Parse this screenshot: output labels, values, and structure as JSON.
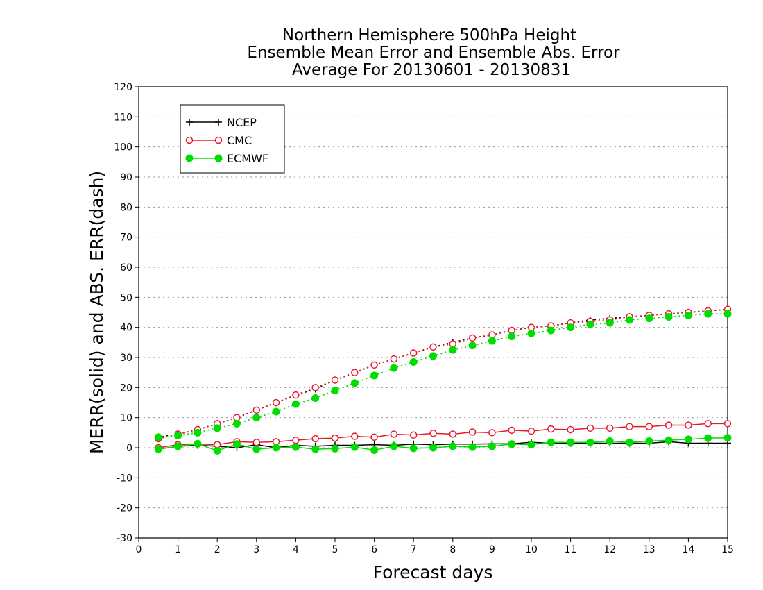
{
  "chart_data": {
    "type": "line",
    "title": [
      "Northern Hemisphere 500hPa Height",
      "Ensemble Mean Error and Ensemble Abs. Error",
      "Average For 20130601 - 20130831"
    ],
    "xlabel": "Forecast days",
    "ylabel": "MERR(solid) and ABS. ERR(dash)",
    "xlim": [
      0,
      15
    ],
    "ylim": [
      -30,
      120
    ],
    "xticks": [
      "0",
      "1",
      "2",
      "3",
      "4",
      "5",
      "6",
      "7",
      "8",
      "9",
      "10",
      "11",
      "12",
      "13",
      "14",
      "15"
    ],
    "yticks": [
      "-30",
      "-20",
      "-10",
      "0",
      "10",
      "20",
      "30",
      "40",
      "50",
      "60",
      "70",
      "80",
      "90",
      "100",
      "110",
      "120"
    ],
    "grid": "horizontal dotted",
    "legend_position": "top-left",
    "x": [
      0.5,
      1,
      1.5,
      2,
      2.5,
      3,
      3.5,
      4,
      4.5,
      5,
      5.5,
      6,
      6.5,
      7,
      7.5,
      8,
      8.5,
      9,
      9.5,
      10,
      10.5,
      11,
      11.5,
      12,
      12.5,
      13,
      13.5,
      14,
      14.5,
      15
    ],
    "series": [
      {
        "name": "NCEP",
        "color": "#000000",
        "marker": "plus",
        "merr": [
          -0.5,
          0.5,
          0.8,
          0.5,
          0,
          1,
          0,
          0.8,
          0.5,
          0.8,
          0.8,
          1,
          0.8,
          1.2,
          1,
          1.2,
          1.2,
          1.3,
          1.3,
          1.8,
          1.5,
          1.5,
          1.5,
          1.5,
          1.5,
          1.5,
          2,
          1.5,
          1.5,
          1.5
        ],
        "abs_err": [
          3.5,
          4.5,
          6,
          8,
          10,
          12.5,
          15,
          17.5,
          19.5,
          22.5,
          25,
          27.5,
          29.5,
          31.5,
          33.5,
          35,
          36.5,
          37.5,
          39,
          40,
          40.5,
          41.5,
          42.5,
          43,
          43.5,
          44,
          44.5,
          45,
          45.5,
          46
        ]
      },
      {
        "name": "CMC",
        "color": "#e8192c",
        "marker": "open-circle",
        "merr": [
          0,
          1,
          1.2,
          1,
          2,
          1.8,
          2,
          2.5,
          3,
          3.2,
          3.8,
          3.5,
          4.5,
          4.2,
          4.8,
          4.5,
          5.2,
          5,
          5.8,
          5.5,
          6.2,
          6,
          6.5,
          6.5,
          7,
          7,
          7.5,
          7.5,
          8,
          8
        ],
        "abs_err": [
          3,
          4.5,
          6,
          8,
          10,
          12.5,
          15,
          17.5,
          20,
          22.5,
          25,
          27.5,
          29.5,
          31.5,
          33.5,
          34.5,
          36.5,
          37.5,
          39,
          40,
          40.5,
          41.5,
          42,
          42.5,
          43.5,
          44,
          44.5,
          45,
          45.5,
          46
        ]
      },
      {
        "name": "ECMWF",
        "color": "#00dd00",
        "marker": "filled-circle",
        "merr": [
          -0.5,
          0.5,
          1.3,
          -1,
          1.2,
          -0.5,
          0,
          0.2,
          -0.5,
          -0.3,
          0.2,
          -0.8,
          0.5,
          -0.2,
          0,
          0.5,
          0.2,
          0.5,
          1.2,
          1,
          1.8,
          1.8,
          1.8,
          2.2,
          1.8,
          2.2,
          2.5,
          2.8,
          3.2,
          3.3
        ],
        "abs_err": [
          3.5,
          4,
          5,
          6.5,
          8,
          10,
          12,
          14.5,
          16.5,
          19,
          21.5,
          24,
          26.5,
          28.5,
          30.5,
          32.5,
          34,
          35.5,
          37,
          38,
          39,
          40,
          41,
          41.5,
          42.5,
          43,
          43.5,
          44,
          44.5,
          44.5
        ]
      }
    ]
  }
}
